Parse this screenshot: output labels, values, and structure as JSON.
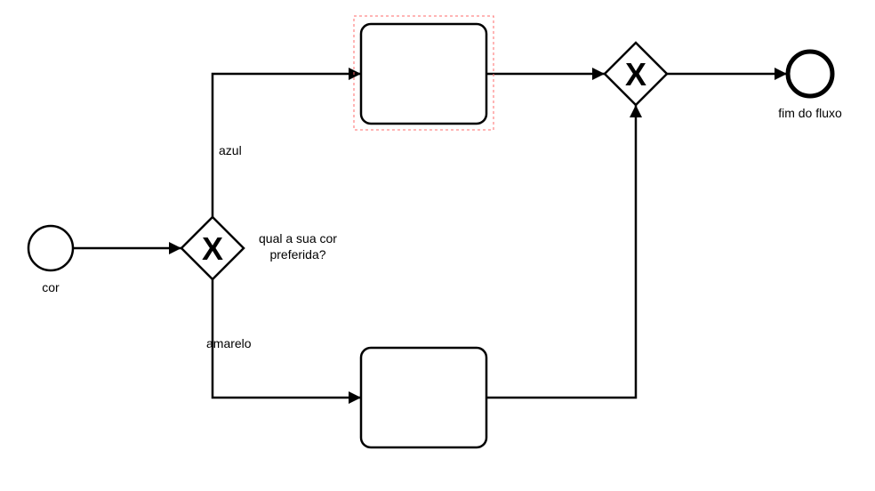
{
  "diagram": {
    "start_event": {
      "label": "cor"
    },
    "split_gateway": {
      "label_line1": "qual a sua cor",
      "label_line2": "preferida?",
      "symbol": "X"
    },
    "merge_gateway": {
      "symbol": "X"
    },
    "end_event": {
      "label": "fim do fluxo"
    },
    "flows": {
      "top": {
        "label": "azul"
      },
      "bottom": {
        "label": "amarelo"
      }
    },
    "selection_color": "#ff6b6b",
    "stroke_color": "#000000"
  }
}
